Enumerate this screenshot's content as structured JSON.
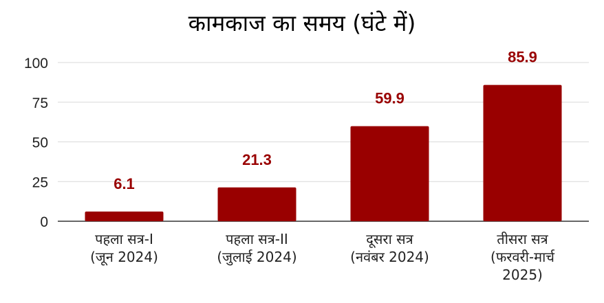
{
  "chart_data": {
    "type": "bar",
    "title": "कामकाज का समय (घंटे में)",
    "categories": [
      [
        "पहला सत्र-I",
        "(जून 2024)"
      ],
      [
        "पहला सत्र-II",
        "(जुलाई 2024)"
      ],
      [
        "दूसरा सत्र",
        "(नवंबर 2024)"
      ],
      [
        "तीसरा सत्र",
        "(फरवरी-मार्च",
        "2025)"
      ]
    ],
    "values": [
      6.1,
      21.3,
      59.9,
      85.9
    ],
    "data_labels": [
      "6.1",
      "21.3",
      "59.9",
      "85.9"
    ],
    "yticks": [
      "0",
      "25",
      "50",
      "75",
      "100"
    ],
    "ylim": [
      0,
      100
    ],
    "xlabel": "",
    "ylabel": "",
    "grid": true,
    "legend": "none",
    "colors": {
      "bar": "#990000",
      "label": "#990000",
      "grid": "#d9d9d9",
      "axis": "#333333"
    }
  }
}
